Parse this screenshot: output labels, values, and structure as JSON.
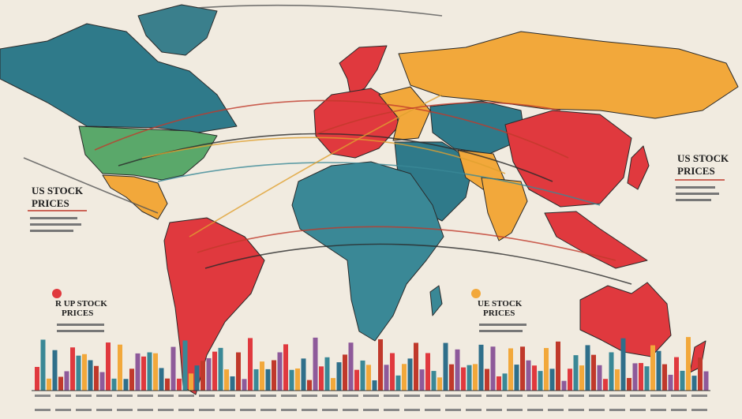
{
  "labels": [
    {
      "lines": [
        "US STOCK",
        "PRICES"
      ]
    },
    {
      "lines": [
        "US STOCK",
        "PRICES"
      ]
    },
    {
      "lines": [
        "R UP STOCK",
        "PRICES"
      ]
    },
    {
      "lines": [
        "UE STOCK",
        "PRICES"
      ]
    }
  ]
}
